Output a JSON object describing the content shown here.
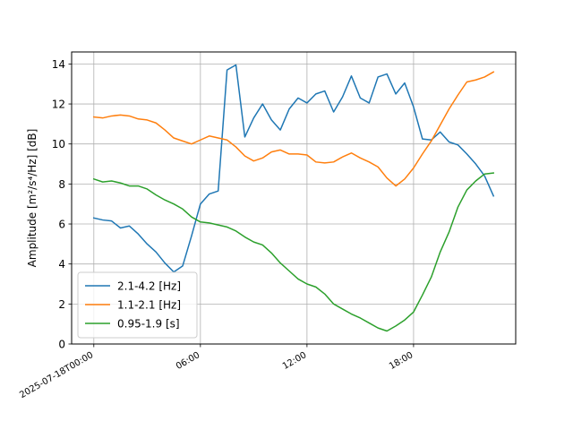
{
  "chart_data": {
    "type": "line",
    "title": "",
    "xlabel": "",
    "ylabel": "Amplitude [m²/s⁴/Hz] [dB]",
    "x_tick_labels": [
      "2025-07-18T00:00",
      "06:00",
      "12:00",
      "18:00"
    ],
    "x_tick_hours": [
      0,
      6,
      12,
      18
    ],
    "xlim_hours": [
      -1.25,
      23.75
    ],
    "ylim": [
      0,
      14.6
    ],
    "yticks": [
      0,
      2,
      4,
      6,
      8,
      10,
      12,
      14
    ],
    "grid": true,
    "legend_position": "lower-left",
    "series": [
      {
        "name": "2.1-4.2 [Hz]",
        "color": "#1f77b4",
        "points": [
          [
            0,
            6.3
          ],
          [
            0.5,
            6.2
          ],
          [
            1,
            6.15
          ],
          [
            1.5,
            5.8
          ],
          [
            2,
            5.9
          ],
          [
            2.5,
            5.5
          ],
          [
            3,
            5.0
          ],
          [
            3.5,
            4.6
          ],
          [
            4,
            4.05
          ],
          [
            4.5,
            3.6
          ],
          [
            5,
            3.9
          ],
          [
            5.5,
            5.4
          ],
          [
            6,
            7.0
          ],
          [
            6.5,
            7.5
          ],
          [
            7,
            7.65
          ],
          [
            7.5,
            13.7
          ],
          [
            8,
            13.95
          ],
          [
            8.5,
            10.35
          ],
          [
            9,
            11.3
          ],
          [
            9.5,
            12.0
          ],
          [
            10,
            11.2
          ],
          [
            10.5,
            10.7
          ],
          [
            11,
            11.75
          ],
          [
            11.5,
            12.3
          ],
          [
            12,
            12.05
          ],
          [
            12.5,
            12.5
          ],
          [
            13,
            12.65
          ],
          [
            13.5,
            11.6
          ],
          [
            14,
            12.35
          ],
          [
            14.5,
            13.4
          ],
          [
            15,
            12.3
          ],
          [
            15.5,
            12.05
          ],
          [
            16,
            13.35
          ],
          [
            16.5,
            13.5
          ],
          [
            17,
            12.5
          ],
          [
            17.5,
            13.05
          ],
          [
            18,
            11.85
          ],
          [
            18.5,
            10.25
          ],
          [
            19,
            10.2
          ],
          [
            19.5,
            10.6
          ],
          [
            20,
            10.1
          ],
          [
            20.5,
            9.95
          ],
          [
            21,
            9.5
          ],
          [
            21.5,
            9.0
          ],
          [
            22,
            8.4
          ],
          [
            22.5,
            7.4
          ]
        ]
      },
      {
        "name": "1.1-2.1 [Hz]",
        "color": "#ff7f0e",
        "points": [
          [
            0,
            11.35
          ],
          [
            0.5,
            11.3
          ],
          [
            1,
            11.4
          ],
          [
            1.5,
            11.45
          ],
          [
            2,
            11.4
          ],
          [
            2.5,
            11.25
          ],
          [
            3,
            11.2
          ],
          [
            3.5,
            11.05
          ],
          [
            4,
            10.7
          ],
          [
            4.5,
            10.3
          ],
          [
            5,
            10.15
          ],
          [
            5.5,
            10.0
          ],
          [
            6,
            10.2
          ],
          [
            6.5,
            10.4
          ],
          [
            7,
            10.3
          ],
          [
            7.5,
            10.2
          ],
          [
            8,
            9.85
          ],
          [
            8.5,
            9.4
          ],
          [
            9,
            9.15
          ],
          [
            9.5,
            9.3
          ],
          [
            10,
            9.6
          ],
          [
            10.5,
            9.7
          ],
          [
            11,
            9.5
          ],
          [
            11.5,
            9.5
          ],
          [
            12,
            9.45
          ],
          [
            12.5,
            9.1
          ],
          [
            13,
            9.05
          ],
          [
            13.5,
            9.1
          ],
          [
            14,
            9.35
          ],
          [
            14.5,
            9.55
          ],
          [
            15,
            9.3
          ],
          [
            15.5,
            9.1
          ],
          [
            16,
            8.85
          ],
          [
            16.5,
            8.3
          ],
          [
            17,
            7.9
          ],
          [
            17.5,
            8.25
          ],
          [
            18,
            8.8
          ],
          [
            18.5,
            9.5
          ],
          [
            19,
            10.15
          ],
          [
            19.5,
            10.95
          ],
          [
            20,
            11.75
          ],
          [
            20.5,
            12.45
          ],
          [
            21,
            13.1
          ],
          [
            21.5,
            13.2
          ],
          [
            22,
            13.35
          ],
          [
            22.5,
            13.6
          ]
        ]
      },
      {
        "name": "0.95-1.9 [s]",
        "color": "#2ca02c",
        "points": [
          [
            0,
            8.25
          ],
          [
            0.5,
            8.1
          ],
          [
            1,
            8.15
          ],
          [
            1.5,
            8.05
          ],
          [
            2,
            7.9
          ],
          [
            2.5,
            7.9
          ],
          [
            3,
            7.75
          ],
          [
            3.5,
            7.45
          ],
          [
            4,
            7.2
          ],
          [
            4.5,
            7.0
          ],
          [
            5,
            6.75
          ],
          [
            5.5,
            6.35
          ],
          [
            6,
            6.1
          ],
          [
            6.5,
            6.05
          ],
          [
            7,
            5.95
          ],
          [
            7.5,
            5.85
          ],
          [
            8,
            5.65
          ],
          [
            8.5,
            5.35
          ],
          [
            9,
            5.1
          ],
          [
            9.5,
            4.95
          ],
          [
            10,
            4.55
          ],
          [
            10.5,
            4.05
          ],
          [
            11,
            3.65
          ],
          [
            11.5,
            3.25
          ],
          [
            12,
            3.0
          ],
          [
            12.5,
            2.85
          ],
          [
            13,
            2.5
          ],
          [
            13.5,
            2.0
          ],
          [
            14,
            1.75
          ],
          [
            14.5,
            1.5
          ],
          [
            15,
            1.3
          ],
          [
            15.5,
            1.05
          ],
          [
            16,
            0.8
          ],
          [
            16.5,
            0.65
          ],
          [
            17,
            0.9
          ],
          [
            17.5,
            1.2
          ],
          [
            18,
            1.6
          ],
          [
            18.5,
            2.45
          ],
          [
            19,
            3.35
          ],
          [
            19.5,
            4.6
          ],
          [
            20,
            5.6
          ],
          [
            20.5,
            6.85
          ],
          [
            21,
            7.7
          ],
          [
            21.5,
            8.15
          ],
          [
            22,
            8.5
          ],
          [
            22.5,
            8.55
          ]
        ]
      }
    ]
  }
}
